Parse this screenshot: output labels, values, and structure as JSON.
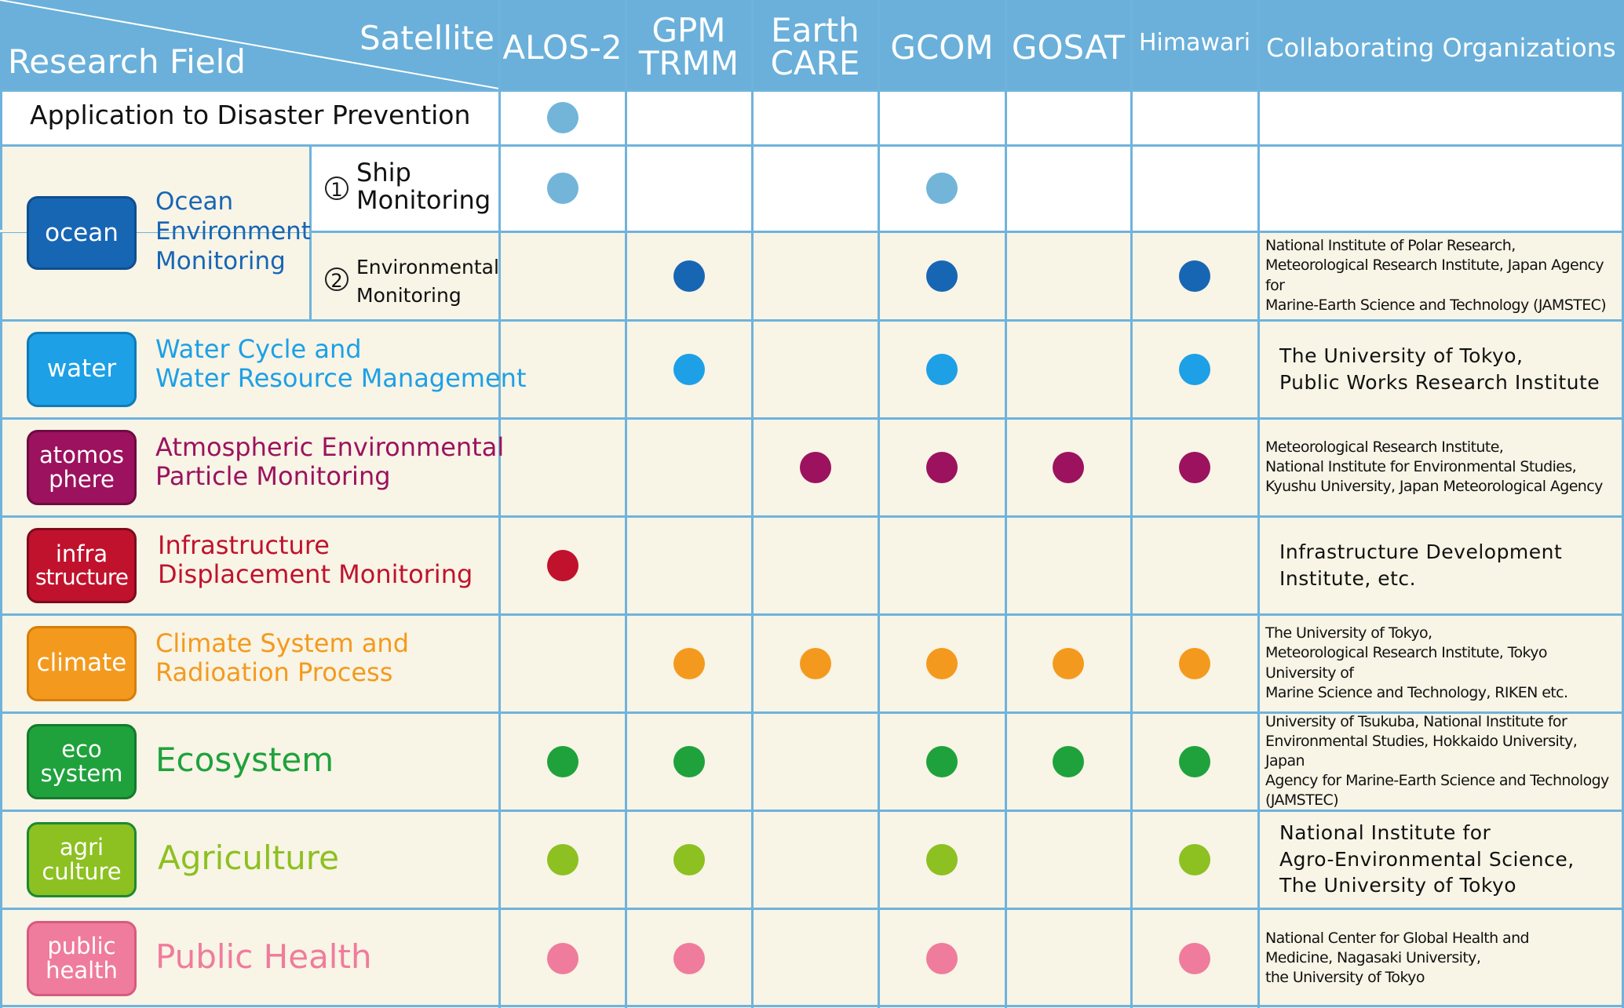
{
  "header": {
    "satellite_label": "Satellite",
    "field_label": "Research Field",
    "columns": [
      {
        "line1": "ALOS-2",
        "line2": ""
      },
      {
        "line1": "GPM",
        "line2": "TRMM"
      },
      {
        "line1": "Earth",
        "line2": "CARE"
      },
      {
        "line1": "GCOM",
        "line2": ""
      },
      {
        "line1": "GOSAT",
        "line2": ""
      },
      {
        "line1": "Himawari",
        "line2": ""
      }
    ],
    "orgs_label": "Collaborating Organizations"
  },
  "disaster_row": {
    "label": "Application to Disaster Prevention",
    "color": "#72b5d9",
    "dots": [
      true,
      false,
      false,
      false,
      false,
      false
    ]
  },
  "ocean": {
    "badge": "ocean",
    "title_lines": [
      "Ocean",
      "Environment",
      "Monitoring"
    ],
    "color": "#1766b4",
    "sub1": {
      "num": "1",
      "line1": "Ship",
      "line2": "Monitoring",
      "color": "#72b5d9",
      "dots": [
        true,
        false,
        false,
        true,
        false,
        false
      ],
      "orgs": ""
    },
    "sub2": {
      "num": "2",
      "line1": "Environmental",
      "line2": "Monitoring",
      "color": "#1766b4",
      "dots": [
        false,
        true,
        false,
        true,
        false,
        true
      ],
      "orgs": "National Institute of Polar Research,\nMeteorological Research Institute, Japan Agency for\nMarine-Earth Science and Technology (JAMSTEC)"
    }
  },
  "rows": [
    {
      "badge1": "water",
      "badge2": "",
      "title1": "Water Cycle and",
      "title2": "Water Resource Management",
      "color": "#1da0e6",
      "dots": [
        false,
        true,
        false,
        true,
        false,
        true
      ],
      "orgs": "The University of Tokyo,\nPublic Works Research Institute",
      "org_size": "large"
    },
    {
      "badge1": "atomos",
      "badge2": "phere",
      "title1": "Atmospheric Environmental",
      "title2": "Particle Monitoring",
      "color": "#9c125e",
      "dots": [
        false,
        false,
        true,
        true,
        true,
        true
      ],
      "orgs": "Meteorological Research Institute,\nNational Institute for Environmental Studies,\nKyushu University, Japan Meteorological Agency",
      "org_size": "small"
    },
    {
      "badge1": "infra",
      "badge2": "structure",
      "title1": "Infrastructure",
      "title2": "Displacement Monitoring",
      "color": "#c0122c",
      "dots": [
        true,
        false,
        false,
        false,
        false,
        false
      ],
      "orgs": "Infrastructure Development\nInstitute, etc.",
      "org_size": "large"
    },
    {
      "badge1": "climate",
      "badge2": "",
      "title1": "Climate System and",
      "title2": "Radioation Process",
      "color": "#f39a1e",
      "dots": [
        false,
        true,
        true,
        true,
        true,
        true
      ],
      "orgs": "The University of Tokyo,\nMeteorological Research Institute, Tokyo University of\nMarine Science and Technology, RIKEN etc.",
      "org_size": "small"
    },
    {
      "badge1": "eco",
      "badge2": "system",
      "title1": "Ecosystem",
      "title2": "",
      "color": "#1fa23c",
      "dots": [
        true,
        true,
        false,
        true,
        true,
        true
      ],
      "orgs": "University of Tsukuba, National Institute for\nEnvironmental Studies, Hokkaido University, Japan\nAgency for Marine-Earth Science and Technology\n(JAMSTEC)",
      "org_size": "small"
    },
    {
      "badge1": "agri",
      "badge2": "culture",
      "title1": "Agriculture",
      "title2": "",
      "color": "#8dc021",
      "dots": [
        true,
        true,
        false,
        true,
        false,
        true
      ],
      "orgs": "National Institute for\nAgro-Environmental Science,\nThe University of Tokyo",
      "org_size": "large"
    },
    {
      "badge1": "public",
      "badge2": "health",
      "title1": "Public Health",
      "title2": "",
      "color": "#ef7c9c",
      "dots": [
        true,
        true,
        false,
        true,
        false,
        true
      ],
      "orgs": "National Center for Global Health and\nMedicine, Nagasaki University,\nthe University of Tokyo",
      "org_size": "small"
    }
  ]
}
